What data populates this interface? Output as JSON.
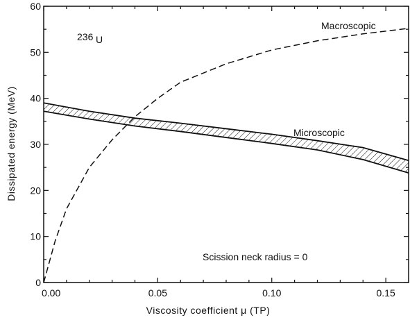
{
  "chart_data": {
    "type": "line",
    "title": "",
    "xlabel": "Viscosity coefficient  μ  (TP)",
    "ylabel": "Dissipated energy (MeV)",
    "xlim": [
      0,
      0.16
    ],
    "ylim": [
      0,
      60
    ],
    "x_ticks": [
      0,
      0.05,
      0.1,
      0.15
    ],
    "x_tick_labels": [
      "0.00",
      "0.05",
      "0.10",
      "0.15"
    ],
    "y_ticks": [
      0,
      10,
      20,
      30,
      40,
      50,
      60
    ],
    "y_tick_labels": [
      "0",
      "10",
      "20",
      "30",
      "40",
      "50",
      "60"
    ],
    "grid": false,
    "series": [
      {
        "name": "Macroscopic",
        "style": "dashed",
        "color": "#111111",
        "x": [
          0,
          0.005,
          0.01,
          0.02,
          0.03,
          0.04,
          0.05,
          0.06,
          0.08,
          0.1,
          0.12,
          0.14,
          0.16
        ],
        "y": [
          0,
          9,
          16,
          25,
          31,
          36,
          40,
          43.5,
          47.5,
          50.5,
          52.5,
          54,
          55.2
        ]
      },
      {
        "name": "Microscopic",
        "style": "hatched-band",
        "color": "#111111",
        "x": [
          0,
          0.02,
          0.04,
          0.06,
          0.08,
          0.1,
          0.12,
          0.14,
          0.16
        ],
        "lower": [
          37.2,
          35.5,
          34,
          32.8,
          31.5,
          30.2,
          28.8,
          26.7,
          23.8
        ],
        "upper": [
          39,
          37.2,
          35.7,
          34.6,
          33.4,
          32.2,
          30.8,
          29.3,
          26.5
        ]
      }
    ],
    "annotations": {
      "nucleus_prefix": "236",
      "nucleus_symbol": "U",
      "macroscopic": "Macroscopic",
      "microscopic": "Microscopic",
      "condition": "Scission  neck  radius  =  0"
    }
  }
}
